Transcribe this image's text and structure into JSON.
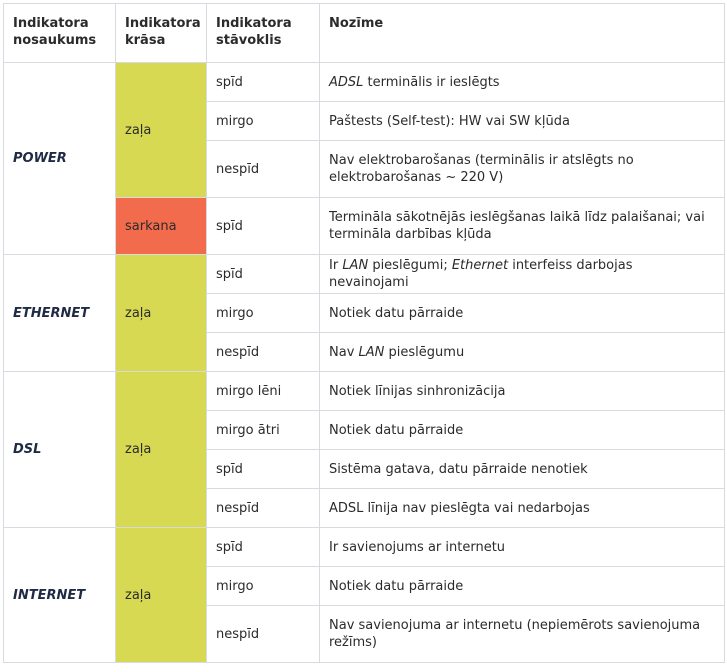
{
  "headers": {
    "name": "Indikatora nosaukums",
    "color": "Indikatora krāsa",
    "state": "Indikatora stāvoklis",
    "meaning": "Nozīme"
  },
  "colors": {
    "green": "#d6d951",
    "red": "#f26b4c",
    "border": "#d6dbe0"
  },
  "groups": [
    {
      "name": "POWER",
      "colors": [
        {
          "color": "zaļa",
          "rows": [
            {
              "state": "spīd",
              "meaning_parts": [
                {
                  "t": "ADSL",
                  "i": true
                },
                {
                  "t": " terminālis ir ieslēgts"
                }
              ]
            },
            {
              "state": "mirgo",
              "meaning_parts": [
                {
                  "t": "Paštests (Self-test): HW vai SW kļūda"
                }
              ]
            },
            {
              "state": "nespīd",
              "meaning_parts": [
                {
                  "t": "Nav elektrobarošanas (terminālis ir atslēgts no elektrobarošanas ~ 220 V)"
                }
              ]
            }
          ]
        },
        {
          "color": "sarkana",
          "rows": [
            {
              "state": "spīd",
              "meaning_parts": [
                {
                  "t": "Termināla sākotnējās ieslēgšanas laikā līdz palaišanai; vai termināla darbības kļūda"
                }
              ]
            }
          ]
        }
      ]
    },
    {
      "name": "ETHERNET",
      "colors": [
        {
          "color": "zaļa",
          "rows": [
            {
              "state": "spīd",
              "meaning_parts": [
                {
                  "t": "Ir "
                },
                {
                  "t": "LAN",
                  "i": true
                },
                {
                  "t": " pieslēgumi; "
                },
                {
                  "t": "Ethernet",
                  "i": true
                },
                {
                  "t": " interfeiss darbojas nevainojami"
                }
              ]
            },
            {
              "state": "mirgo",
              "meaning_parts": [
                {
                  "t": "Notiek datu pārraide"
                }
              ]
            },
            {
              "state": "nespīd",
              "meaning_parts": [
                {
                  "t": "Nav "
                },
                {
                  "t": "LAN",
                  "i": true
                },
                {
                  "t": " pieslēgumu"
                }
              ]
            }
          ]
        }
      ]
    },
    {
      "name": "DSL",
      "colors": [
        {
          "color": "zaļa",
          "rows": [
            {
              "state": "mirgo lēni",
              "meaning_parts": [
                {
                  "t": "Notiek līnijas sinhronizācija"
                }
              ]
            },
            {
              "state": "mirgo ātri",
              "meaning_parts": [
                {
                  "t": "Notiek datu pārraide"
                }
              ]
            },
            {
              "state": "spīd",
              "meaning_parts": [
                {
                  "t": "Sistēma gatava, datu pārraide nenotiek"
                }
              ]
            },
            {
              "state": "nespīd",
              "meaning_parts": [
                {
                  "t": "ADSL līnija nav pieslēgta vai nedarbojas"
                }
              ]
            }
          ]
        }
      ]
    },
    {
      "name": "INTERNET",
      "colors": [
        {
          "color": "zaļa",
          "rows": [
            {
              "state": "spīd",
              "meaning_parts": [
                {
                  "t": "Ir savienojums ar internetu"
                }
              ]
            },
            {
              "state": "mirgo",
              "meaning_parts": [
                {
                  "t": "Notiek datu pārraide"
                }
              ]
            },
            {
              "state": "nespīd",
              "meaning_parts": [
                {
                  "t": "Nav savienojuma ar internetu (nepiemērots savienojuma režīms)"
                }
              ]
            }
          ]
        }
      ]
    }
  ]
}
